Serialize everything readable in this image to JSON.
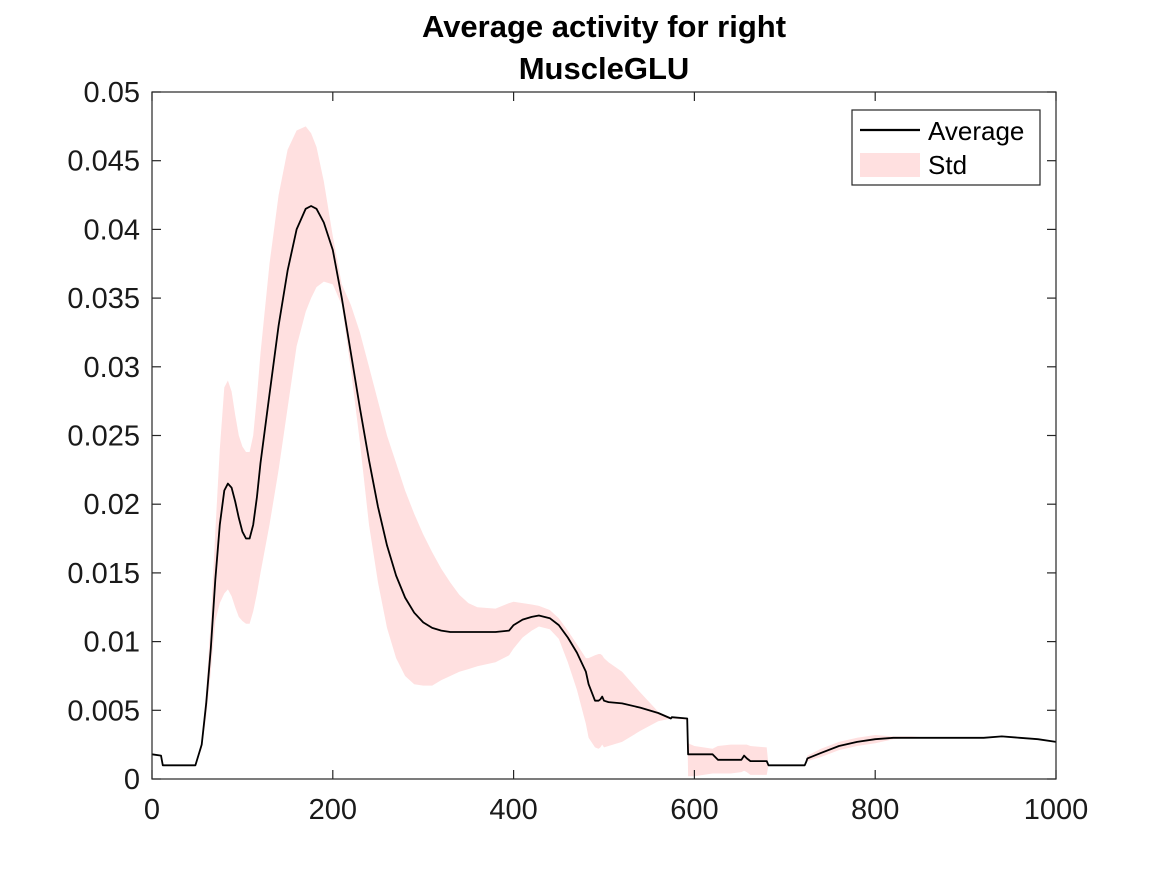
{
  "chart_data": {
    "type": "line",
    "title_lines": [
      "Average activity for right",
      "MuscleGLU"
    ],
    "xlabel": "",
    "ylabel": "",
    "xlim": [
      0,
      1000
    ],
    "ylim": [
      0,
      0.05
    ],
    "xticks": [
      0,
      200,
      400,
      600,
      800,
      1000
    ],
    "xtick_labels": [
      "0",
      "200",
      "400",
      "600",
      "800",
      "1000"
    ],
    "yticks": [
      0,
      0.005,
      0.01,
      0.015,
      0.02,
      0.025,
      0.03,
      0.035,
      0.04,
      0.045,
      0.05
    ],
    "ytick_labels": [
      "0",
      "0.005",
      "0.01",
      "0.015",
      "0.02",
      "0.025",
      "0.03",
      "0.035",
      "0.04",
      "0.045",
      "0.05"
    ],
    "grid": false,
    "legend_position": "top-right",
    "legend": [
      {
        "label": "Average",
        "kind": "line",
        "color": "#000000"
      },
      {
        "label": "Std",
        "kind": "band",
        "color": "#ffe0e0"
      }
    ],
    "series": [
      {
        "name": "Average",
        "color": "#000000",
        "x": [
          0,
          10,
          12,
          48,
          55,
          60,
          65,
          70,
          75,
          80,
          84,
          88,
          92,
          96,
          100,
          104,
          108,
          112,
          116,
          120,
          130,
          140,
          150,
          160,
          170,
          176,
          182,
          190,
          200,
          210,
          220,
          230,
          240,
          250,
          260,
          270,
          280,
          290,
          300,
          310,
          320,
          330,
          340,
          350,
          360,
          380,
          395,
          400,
          410,
          420,
          428,
          440,
          450,
          460,
          470,
          480,
          483,
          490,
          494,
          496,
          498,
          500,
          505,
          520,
          540,
          560,
          574,
          575,
          592,
          593,
          600,
          620,
          626,
          640,
          652,
          655,
          658,
          662,
          680,
          682,
          722,
          724,
          725,
          740,
          760,
          780,
          800,
          820,
          840,
          860,
          880,
          900,
          920,
          940,
          960,
          980,
          1000
        ],
        "y": [
          0.0018,
          0.0017,
          0.001,
          0.001,
          0.0025,
          0.0055,
          0.0095,
          0.0145,
          0.0185,
          0.021,
          0.0215,
          0.0212,
          0.0202,
          0.019,
          0.018,
          0.0175,
          0.0175,
          0.0185,
          0.0205,
          0.023,
          0.028,
          0.033,
          0.037,
          0.04,
          0.0415,
          0.0417,
          0.0415,
          0.0405,
          0.0385,
          0.035,
          0.031,
          0.027,
          0.0232,
          0.0198,
          0.017,
          0.0148,
          0.0132,
          0.0121,
          0.0114,
          0.011,
          0.0108,
          0.0107,
          0.0107,
          0.0107,
          0.0107,
          0.0107,
          0.0108,
          0.0112,
          0.0116,
          0.0118,
          0.0119,
          0.0117,
          0.0112,
          0.0103,
          0.0092,
          0.0078,
          0.0069,
          0.0057,
          0.0057,
          0.0058,
          0.006,
          0.0057,
          0.0056,
          0.0055,
          0.0052,
          0.0048,
          0.0044,
          0.0045,
          0.0044,
          0.0018,
          0.0018,
          0.0018,
          0.0014,
          0.0014,
          0.0014,
          0.0017,
          0.0015,
          0.0013,
          0.0013,
          0.001,
          0.001,
          0.0013,
          0.0015,
          0.0019,
          0.0024,
          0.0027,
          0.0029,
          0.003,
          0.003,
          0.003,
          0.003,
          0.003,
          0.003,
          0.0031,
          0.003,
          0.0029,
          0.0027
        ]
      },
      {
        "name": "Std",
        "color": "#ffe0e0",
        "x": [
          0,
          10,
          12,
          48,
          55,
          60,
          65,
          70,
          75,
          80,
          84,
          88,
          92,
          96,
          100,
          104,
          108,
          112,
          116,
          120,
          130,
          140,
          150,
          160,
          170,
          176,
          182,
          190,
          200,
          210,
          220,
          230,
          240,
          250,
          260,
          270,
          280,
          290,
          300,
          310,
          320,
          330,
          340,
          350,
          360,
          380,
          395,
          400,
          410,
          420,
          428,
          440,
          450,
          460,
          470,
          480,
          483,
          490,
          494,
          496,
          498,
          500,
          505,
          520,
          540,
          560,
          574,
          575,
          592,
          593,
          600,
          620,
          626,
          640,
          652,
          655,
          658,
          662,
          680,
          682,
          722,
          724,
          725,
          740,
          760,
          780,
          800,
          820,
          840,
          860,
          880,
          900,
          920,
          940,
          960,
          980,
          1000
        ],
        "upper": [
          0.0018,
          0.0017,
          0.001,
          0.001,
          0.0028,
          0.0065,
          0.0115,
          0.018,
          0.024,
          0.0285,
          0.029,
          0.0282,
          0.0265,
          0.025,
          0.0242,
          0.0238,
          0.0238,
          0.025,
          0.0278,
          0.031,
          0.0375,
          0.0425,
          0.0458,
          0.0472,
          0.0475,
          0.047,
          0.046,
          0.0435,
          0.0395,
          0.036,
          0.0345,
          0.0325,
          0.03,
          0.0275,
          0.025,
          0.023,
          0.021,
          0.0193,
          0.0178,
          0.0165,
          0.0153,
          0.0143,
          0.0134,
          0.0128,
          0.0125,
          0.0124,
          0.0128,
          0.0129,
          0.0128,
          0.0127,
          0.0126,
          0.0123,
          0.0117,
          0.0108,
          0.0098,
          0.0088,
          0.0088,
          0.009,
          0.0091,
          0.0091,
          0.009,
          0.0088,
          0.0085,
          0.0078,
          0.0063,
          0.0049,
          0.0045,
          0.0045,
          0.0044,
          0.0026,
          0.0024,
          0.0022,
          0.0024,
          0.0025,
          0.0025,
          0.0025,
          0.0025,
          0.0024,
          0.0023,
          0.001,
          0.001,
          0.0015,
          0.0017,
          0.0022,
          0.0027,
          0.003,
          0.0032,
          0.0031,
          0.0031,
          0.003,
          0.003,
          0.003,
          0.003,
          0.0031,
          0.003,
          0.0029,
          0.0027
        ],
        "lower": [
          0.0018,
          0.0017,
          0.001,
          0.001,
          0.0022,
          0.0045,
          0.0078,
          0.0115,
          0.0128,
          0.0135,
          0.0138,
          0.0133,
          0.0125,
          0.0118,
          0.0115,
          0.0113,
          0.0113,
          0.0122,
          0.0135,
          0.015,
          0.0185,
          0.0225,
          0.027,
          0.0315,
          0.034,
          0.035,
          0.0358,
          0.0362,
          0.036,
          0.0345,
          0.0298,
          0.0245,
          0.0185,
          0.0143,
          0.011,
          0.0088,
          0.0075,
          0.0069,
          0.0068,
          0.0068,
          0.0072,
          0.0075,
          0.0078,
          0.008,
          0.0082,
          0.0085,
          0.009,
          0.0095,
          0.0103,
          0.0108,
          0.0111,
          0.0109,
          0.0102,
          0.0085,
          0.0065,
          0.004,
          0.003,
          0.0023,
          0.0022,
          0.0023,
          0.0025,
          0.0023,
          0.0024,
          0.0027,
          0.0035,
          0.0042,
          0.0044,
          0.0044,
          0.0043,
          0.0002,
          0.0002,
          0.0004,
          0.0004,
          0.0004,
          0.0005,
          0.0006,
          0.0005,
          0.0003,
          0.0003,
          0.001,
          0.001,
          0.0011,
          0.0013,
          0.0016,
          0.0021,
          0.0024,
          0.0026,
          0.0029,
          0.003,
          0.003,
          0.003,
          0.003,
          0.003,
          0.0031,
          0.003,
          0.0029,
          0.0027
        ]
      }
    ]
  }
}
